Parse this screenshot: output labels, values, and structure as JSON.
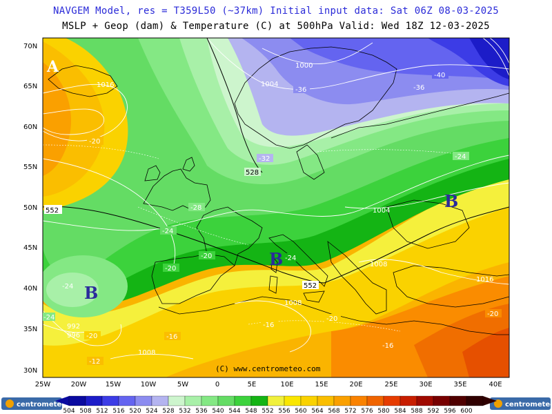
{
  "header": {
    "line1": "NAVGEM Model, res = T359L50 (~37km)    Initial input data: Sat 06Z 08-03-2025",
    "line2": "MSLP + Geop (dam) & Temperature (C) at 500hPa  Valid: Wed 18Z 12-03-2025"
  },
  "axes": {
    "lat_labels": [
      "70N",
      "65N",
      "60N",
      "55N",
      "50N",
      "45N",
      "40N",
      "35N",
      "30N"
    ],
    "lon_labels": [
      "25W",
      "20W",
      "15W",
      "10W",
      "5W",
      "0",
      "5E",
      "10E",
      "15E",
      "20E",
      "25E",
      "30E",
      "35E",
      "40E"
    ]
  },
  "pressure_centers": [
    {
      "label": "A",
      "kind": "high"
    },
    {
      "label": "B",
      "kind": "low"
    },
    {
      "label": "B",
      "kind": "low"
    },
    {
      "label": "B",
      "kind": "low"
    }
  ],
  "isobar_labels": [
    "1016",
    "1004",
    "1000",
    "1008",
    "1008",
    "1016",
    "1004",
    "992",
    "996",
    "1008"
  ],
  "geop_labels": [
    "552",
    "528",
    "552"
  ],
  "temp_labels": [
    "-20",
    "-24",
    "-28",
    "-24",
    "-20",
    "-20",
    "-24",
    "-32",
    "-36",
    "-36",
    "-40",
    "-24",
    "-24",
    "-20",
    "-16",
    "-16",
    "-20",
    "-12",
    "-16",
    "-20"
  ],
  "legend": {
    "values": [
      "504",
      "508",
      "512",
      "516",
      "520",
      "524",
      "528",
      "532",
      "536",
      "540",
      "544",
      "548",
      "552",
      "556",
      "560",
      "564",
      "568",
      "572",
      "576",
      "580",
      "584",
      "588",
      "592",
      "596",
      "600"
    ],
    "colors": [
      "#0a0aa0",
      "#1c1cc8",
      "#3c3ce6",
      "#6464f0",
      "#8c8cf0",
      "#b4b4f0",
      "#cdf5cd",
      "#a8f0a8",
      "#84e884",
      "#64dc64",
      "#3cd23c",
      "#14b414",
      "#f0f03c",
      "#fae600",
      "#fad200",
      "#fabe00",
      "#faa000",
      "#fa8200",
      "#f06400",
      "#e63c00",
      "#c81e00",
      "#a00a00",
      "#780000",
      "#500000",
      "#300000"
    ],
    "logo_left": "centrometeo",
    "logo_right": "centrometeo"
  },
  "copyright": "(C) www.centrometeo.com"
}
